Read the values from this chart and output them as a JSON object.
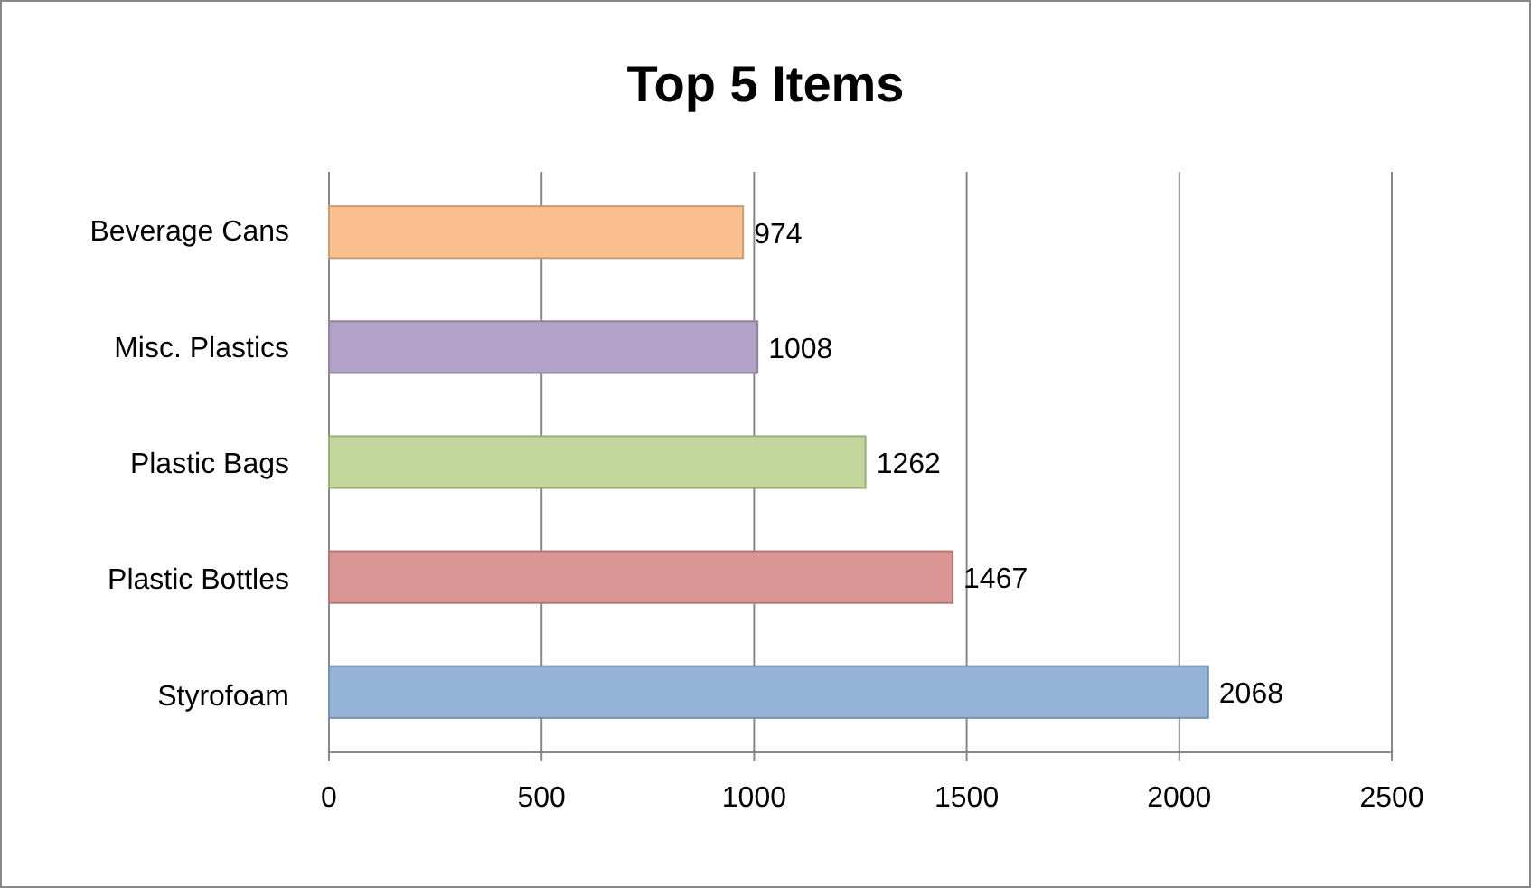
{
  "chart_data": {
    "type": "bar",
    "title": "Top 5 Items",
    "orientation": "horizontal",
    "categories": [
      "Beverage Cans",
      "Misc. Plastics",
      "Plastic Bags",
      "Plastic Bottles",
      "Styrofoam"
    ],
    "values": [
      974,
      1008,
      1262,
      1467,
      2068
    ],
    "colors": [
      "#fac090",
      "#b3a2c7",
      "#c3d69b",
      "#d99694",
      "#95b3d7"
    ],
    "xlim": [
      0,
      2500
    ],
    "xticks": [
      0,
      500,
      1000,
      1500,
      2000,
      2500
    ],
    "grid": "x",
    "data_labels": true
  }
}
